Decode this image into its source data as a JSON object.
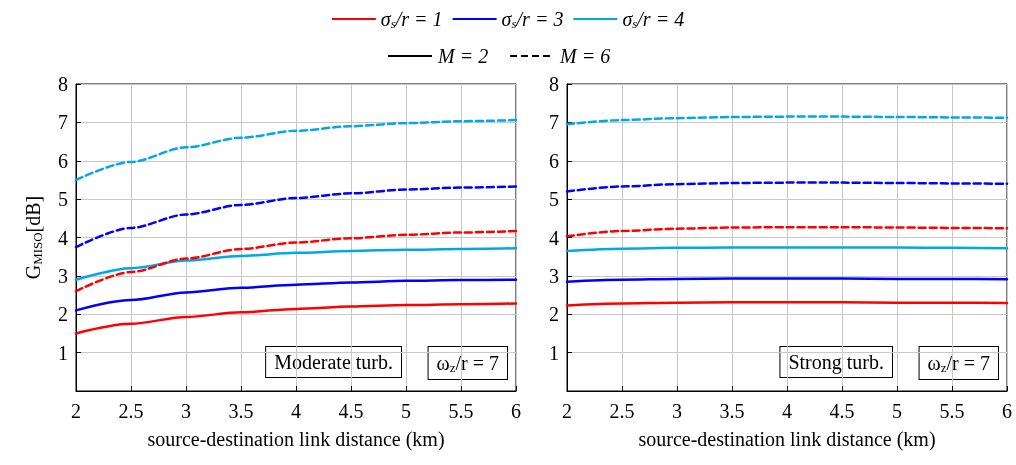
{
  "chart_data": [
    {
      "type": "line",
      "xlabel": "source-destination link distance (km)",
      "ylabel": "G$_{MISO}$[dB]",
      "x": [
        2,
        2.5,
        3,
        3.5,
        4,
        4.5,
        5,
        5.5,
        6
      ],
      "xlim": [
        2,
        6
      ],
      "xticks": [
        2,
        2.5,
        3,
        3.5,
        4,
        4.5,
        5,
        5.5,
        6
      ],
      "ylim": [
        0,
        8
      ],
      "yticks": [
        {
          "value": 0,
          "label": null
        },
        1,
        2,
        3,
        4,
        5,
        6,
        7,
        8
      ],
      "grid": true,
      "legend": "top",
      "marker": "none",
      "annotations": [
        "M = 2",
        "M = 6",
        "Moderate turb.",
        "ω$_{z}$/r = 7"
      ],
      "series": [
        {
          "name": "σ$_{s}$/r = 1",
          "color": "#ff0000",
          "line_style": "solid",
          "values": [
            1.5,
            1.75,
            1.93,
            2.05,
            2.14,
            2.2,
            2.24,
            2.26,
            2.28
          ]
        },
        {
          "name": "σ$_{s}$/r = 3",
          "color": "#0000ff",
          "line_style": "solid",
          "values": [
            2.1,
            2.37,
            2.57,
            2.69,
            2.77,
            2.83,
            2.87,
            2.89,
            2.9
          ]
        },
        {
          "name": "σ$_{s}$/r = 4",
          "color": "#00a8e8",
          "line_style": "solid",
          "values": [
            2.9,
            3.2,
            3.4,
            3.52,
            3.6,
            3.65,
            3.68,
            3.7,
            3.72
          ]
        },
        {
          "color": "#ff0000",
          "line_style": "dashed",
          "values": [
            2.6,
            3.1,
            3.45,
            3.7,
            3.87,
            3.98,
            4.07,
            4.13,
            4.17
          ]
        },
        {
          "color": "#0000ff",
          "line_style": "dashed",
          "values": [
            3.75,
            4.25,
            4.6,
            4.85,
            5.03,
            5.15,
            5.25,
            5.3,
            5.33
          ]
        },
        {
          "color": "#00a8e8",
          "line_style": "dashed",
          "values": [
            5.5,
            5.97,
            6.35,
            6.6,
            6.78,
            6.9,
            6.98,
            7.03,
            7.06
          ]
        }
      ]
    },
    {
      "type": "line",
      "xlabel": "source-destination link distance (km)",
      "x": [
        2,
        2.5,
        3,
        3.5,
        4,
        4.5,
        5,
        5.5,
        6
      ],
      "xlim": [
        2,
        6
      ],
      "xticks": [
        2,
        2.5,
        3,
        3.5,
        4,
        4.5,
        5,
        5.5,
        6
      ],
      "ylim": [
        0,
        8
      ],
      "yticks": [
        {
          "value": 0,
          "label": null
        },
        1,
        2,
        3,
        4,
        5,
        6,
        7,
        8
      ],
      "grid": true,
      "marker": "none",
      "annotations": [
        "Strong turb.",
        "ω$_{z}$/r = 7"
      ],
      "series": [
        {
          "color": "#ff0000",
          "line_style": "solid",
          "values": [
            2.23,
            2.28,
            2.3,
            2.31,
            2.31,
            2.31,
            2.3,
            2.3,
            2.29
          ]
        },
        {
          "color": "#0000ff",
          "line_style": "solid",
          "values": [
            2.85,
            2.9,
            2.92,
            2.93,
            2.93,
            2.93,
            2.92,
            2.92,
            2.91
          ]
        },
        {
          "color": "#00a8e8",
          "line_style": "solid",
          "values": [
            3.65,
            3.71,
            3.73,
            3.74,
            3.74,
            3.74,
            3.74,
            3.73,
            3.72
          ]
        },
        {
          "color": "#ff0000",
          "line_style": "dashed",
          "values": [
            4.03,
            4.17,
            4.23,
            4.26,
            4.27,
            4.27,
            4.26,
            4.25,
            4.24
          ]
        },
        {
          "color": "#0000ff",
          "line_style": "dashed",
          "values": [
            5.2,
            5.33,
            5.39,
            5.42,
            5.43,
            5.43,
            5.42,
            5.41,
            5.4
          ]
        },
        {
          "color": "#00a8e8",
          "line_style": "dashed",
          "values": [
            6.95,
            7.06,
            7.11,
            7.14,
            7.15,
            7.15,
            7.14,
            7.13,
            7.12
          ]
        }
      ]
    }
  ]
}
